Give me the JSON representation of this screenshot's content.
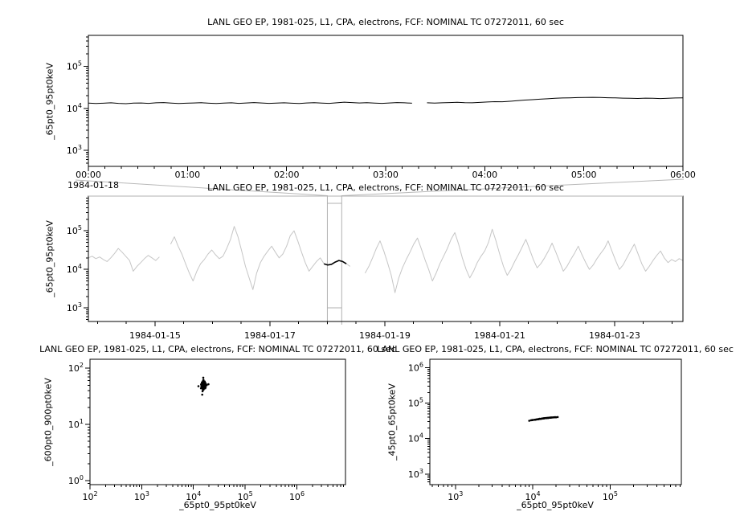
{
  "figure": {
    "background": "#ffffff"
  },
  "colors": {
    "foreground": "#000000",
    "context_series": "#c6c6c6",
    "overview_box": "#b0b0b0",
    "connector": "#b8b8b8"
  },
  "chart_data": [
    {
      "id": "timeseries-detail",
      "type": "line",
      "title": "LANL GEO EP, 1981-025, L1, CPA, electrons, FCF: NOMINAL TC 07272011, 60 sec",
      "ylabel": "_65pt0_95pt0keV",
      "xlabel": "",
      "x_axis": {
        "scale": "linear",
        "x_unit": "minutes from 1984-01-18 00:00",
        "start_label": "1984-01-18",
        "xlim": [
          0,
          360
        ],
        "tick_positions": [
          0,
          60,
          120,
          180,
          240,
          300,
          360
        ],
        "tick_labels": [
          "00:00",
          "01:00",
          "02:00",
          "03:00",
          "04:00",
          "05:00",
          "06:00"
        ],
        "minor_step": 10
      },
      "y_axis": {
        "scale": "log10",
        "ylim_log10": [
          2.62,
          5.74
        ],
        "tick_exponents": [
          3,
          4,
          5
        ]
      },
      "series": {
        "name": "_65pt0_95pt0keV",
        "color": "#000000",
        "x_spacing": "uniform",
        "values": [
          13400,
          13100,
          13300,
          13600,
          13200,
          13000,
          13400,
          13500,
          13200,
          13600,
          13800,
          13400,
          13100,
          13300,
          13500,
          13700,
          13300,
          13100,
          13400,
          13600,
          13200,
          13500,
          13800,
          13500,
          13200,
          13400,
          13600,
          13300,
          13100,
          13500,
          13700,
          13400,
          13200,
          13600,
          14100,
          13800,
          13500,
          13700,
          13400,
          13200,
          13500,
          13800,
          13600,
          13300,
          null,
          13600,
          13400,
          13600,
          13800,
          14000,
          13700,
          13600,
          13900,
          14200,
          14500,
          14400,
          14800,
          15300,
          15800,
          16200,
          16600,
          17000,
          17400,
          17700,
          17900,
          18100,
          18300,
          18400,
          18200,
          18000,
          17800,
          17600,
          17500,
          17300,
          17600,
          17400,
          17200,
          17500,
          17700,
          17900
        ]
      }
    },
    {
      "id": "timeseries-context",
      "type": "line",
      "title": "LANL GEO EP, 1981-025, L1, CPA, electrons, FCF: NOMINAL TC 07272011, 60 sec",
      "ylabel": "_65pt0_95pt0keV",
      "xlabel": "",
      "x_axis": {
        "scale": "linear",
        "x_unit": "days since 1984-01-14 00:00",
        "xlim": [
          -0.16,
          10.19
        ],
        "tick_positions": [
          1,
          3,
          5,
          7,
          9
        ],
        "tick_labels": [
          "1984-01-15",
          "1984-01-17",
          "1984-01-19",
          "1984-01-21",
          "1984-01-23"
        ],
        "minor_step": 0.5
      },
      "y_axis": {
        "scale": "log10",
        "ylim_log10": [
          2.65,
          5.9
        ],
        "tick_exponents": [
          3,
          4,
          5
        ]
      },
      "series": {
        "name": "_65pt0_95pt0keV",
        "color": "#c6c6c6",
        "x_spacing": "uniform",
        "values": [
          20000,
          22000,
          19000,
          21000,
          18000,
          16000,
          20000,
          26000,
          35000,
          28000,
          22000,
          17000,
          9000,
          12000,
          15000,
          19000,
          23000,
          20000,
          17000,
          21000,
          null,
          null,
          45000,
          70000,
          40000,
          25000,
          14000,
          8000,
          5000,
          9000,
          14000,
          18000,
          25000,
          32000,
          24000,
          19000,
          22000,
          35000,
          60000,
          130000,
          70000,
          30000,
          12000,
          6000,
          3000,
          8000,
          15000,
          22000,
          30000,
          40000,
          28000,
          20000,
          25000,
          40000,
          75000,
          100000,
          55000,
          28000,
          15000,
          9000,
          12000,
          16000,
          20000,
          14000,
          13000,
          13500,
          15500,
          17000,
          16000,
          14000,
          12000,
          null,
          null,
          null,
          8000,
          12000,
          20000,
          35000,
          55000,
          30000,
          15000,
          7000,
          2500,
          6000,
          11000,
          18000,
          28000,
          45000,
          65000,
          35000,
          18000,
          10000,
          5000,
          8000,
          14000,
          22000,
          35000,
          60000,
          90000,
          45000,
          20000,
          10000,
          6000,
          9000,
          15000,
          22000,
          30000,
          50000,
          110000,
          55000,
          25000,
          12000,
          7000,
          10000,
          16000,
          24000,
          38000,
          60000,
          33000,
          18000,
          11000,
          14000,
          20000,
          30000,
          48000,
          28000,
          16000,
          9000,
          12000,
          18000,
          26000,
          40000,
          24000,
          15000,
          10000,
          13000,
          19000,
          26000,
          35000,
          55000,
          30000,
          17000,
          10000,
          13000,
          20000,
          30000,
          45000,
          25000,
          14000,
          9000,
          12000,
          17000,
          23000,
          30000,
          20000,
          15000,
          18000,
          16000,
          19000,
          17000
        ]
      },
      "highlight": {
        "color": "#000000",
        "index_range": [
          63,
          69
        ],
        "time_range_days": [
          4.0,
          4.25
        ]
      },
      "overview_box_days": [
        4.0,
        4.25
      ]
    },
    {
      "id": "scatter-600-900",
      "type": "scatter",
      "title": "LANL GEO EP, 1981-025, L1, CPA, electrons, FCF: NOMINAL TC 07272011, 60 sec",
      "ylabel": "_600pt0_900pt0keV",
      "xlabel": "_65pt0_95pt0keV",
      "x_axis": {
        "scale": "log10",
        "xlim_log10": [
          2.0,
          6.94
        ],
        "tick_exponents": [
          2,
          3,
          4,
          5,
          6
        ]
      },
      "y_axis": {
        "scale": "log10",
        "ylim_log10": [
          -0.07,
          2.16
        ],
        "tick_exponents": [
          0,
          1,
          2
        ]
      },
      "point_color": "#000000",
      "points": [
        [
          15000,
          50
        ],
        [
          16000,
          52
        ],
        [
          14500,
          47
        ],
        [
          15500,
          55
        ],
        [
          17000,
          49
        ],
        [
          14000,
          44
        ],
        [
          16500,
          58
        ],
        [
          15200,
          46
        ],
        [
          15800,
          51
        ],
        [
          14800,
          53
        ],
        [
          16200,
          45
        ],
        [
          15400,
          60
        ],
        [
          14300,
          48
        ],
        [
          17500,
          52
        ],
        [
          15100,
          43
        ],
        [
          16800,
          47
        ],
        [
          14600,
          56
        ],
        [
          15900,
          50
        ],
        [
          15300,
          41
        ],
        [
          16100,
          54
        ],
        [
          14900,
          49
        ],
        [
          15600,
          62
        ],
        [
          17200,
          46
        ],
        [
          14200,
          51
        ],
        [
          15700,
          44
        ],
        [
          16400,
          57
        ],
        [
          15000,
          39
        ],
        [
          16000,
          48
        ],
        [
          14700,
          53
        ],
        [
          15500,
          47
        ],
        [
          16600,
          50
        ],
        [
          15200,
          58
        ],
        [
          14400,
          45
        ],
        [
          17000,
          55
        ],
        [
          15800,
          42
        ],
        [
          16300,
          49
        ],
        [
          14100,
          52
        ],
        [
          15400,
          46
        ],
        [
          16900,
          44
        ],
        [
          15600,
          53
        ],
        [
          15500,
          68
        ],
        [
          14800,
          34
        ],
        [
          18000,
          50
        ],
        [
          12500,
          48
        ],
        [
          19500,
          52
        ]
      ]
    },
    {
      "id": "scatter-45-65",
      "type": "scatter",
      "title": "LANL GEO EP, 1981-025, L1, CPA, electrons, FCF: NOMINAL TC 07272011, 60 sec",
      "ylabel": "_45pt0_65pt0keV",
      "xlabel": "_65pt0_95pt0keV",
      "x_axis": {
        "scale": "log10",
        "xlim_log10": [
          2.67,
          5.92
        ],
        "tick_exponents": [
          3,
          4,
          5
        ]
      },
      "y_axis": {
        "scale": "log10",
        "ylim_log10": [
          2.7,
          6.24
        ],
        "tick_exponents": [
          3,
          4,
          5,
          6
        ]
      },
      "point_color": "#000000",
      "points": [
        [
          9000,
          32000
        ],
        [
          9500,
          33000
        ],
        [
          10000,
          33500
        ],
        [
          10500,
          34000
        ],
        [
          11000,
          34500
        ],
        [
          11500,
          35000
        ],
        [
          12000,
          35500
        ],
        [
          12500,
          36000
        ],
        [
          13000,
          36500
        ],
        [
          13500,
          37000
        ],
        [
          14000,
          37500
        ],
        [
          14500,
          38000
        ],
        [
          15000,
          38000
        ],
        [
          15500,
          38500
        ],
        [
          16000,
          38500
        ],
        [
          16500,
          39000
        ],
        [
          17000,
          39000
        ],
        [
          17500,
          39500
        ],
        [
          18000,
          39500
        ],
        [
          19000,
          40000
        ],
        [
          20000,
          40000
        ],
        [
          21000,
          40500
        ],
        [
          12200,
          36200
        ],
        [
          13200,
          36800
        ],
        [
          14200,
          37600
        ],
        [
          15200,
          38200
        ],
        [
          16200,
          38800
        ],
        [
          17200,
          39200
        ],
        [
          18500,
          39800
        ],
        [
          10800,
          34200
        ],
        [
          11800,
          35200
        ],
        [
          12800,
          36400
        ],
        [
          13800,
          37200
        ],
        [
          14800,
          37900
        ],
        [
          15800,
          38400
        ],
        [
          16800,
          39100
        ],
        [
          9800,
          33200
        ],
        [
          19500,
          40200
        ],
        [
          11300,
          34800
        ],
        [
          13600,
          37100
        ]
      ]
    }
  ]
}
